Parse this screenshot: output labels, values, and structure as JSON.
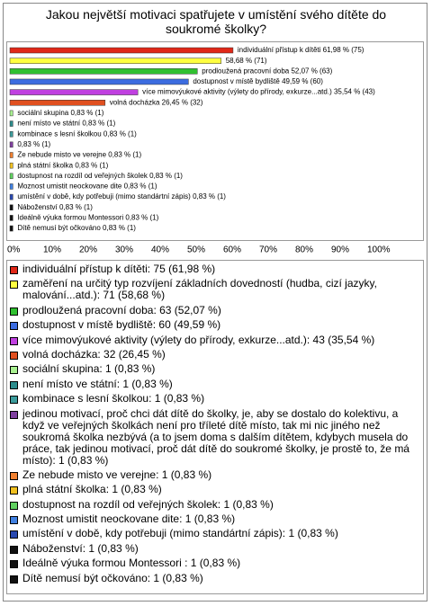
{
  "chart_data": {
    "type": "bar",
    "orientation": "horizontal",
    "title": "Jakou největší motivaci spatřujete v umístění svého dítěte do soukromé školky?",
    "categories": [
      "individuální přístup k dítěti: 75 (61,98 %)",
      "zaměření na určitý typ rozvíjení základních dovedností (hudba, cizí jazyky, malování...atd.): 71 (58,68 %)",
      "prodloužená pracovní doba: 63 (52,07 %)",
      "dostupnost v místě bydliště: 60 (49,59 %)",
      "více mimovýukové aktivity (výlety do přírody, exkurze...atd.): 43 (35,54 %)",
      "volná docházka: 32 (26,45 %)",
      "sociální skupina: 1 (0,83 %)",
      "není místo ve státní: 1 (0,83 %)",
      "kombinace s lesní školkou: 1 (0,83 %)",
      "jedinou motivací, proč chci dát dítě do školky, je, aby se dostalo do kolektivu, a když ve veřejných školkách není pro tříleté dítě místo, tak mi nic jiného než soukromá školka nezbývá (a to jsem doma s dalším dítětem, kdybych musela do práce, tak jedinou motivací, proč dát dítě do soukromé školky, je prostě to, že má místo): 1 (0,83 %)",
      "Ze nebude misto ve verejne: 1 (0,83 %)",
      "plná státní školka: 1 (0,83 %)",
      "dostupnost na rozdíl od veřejných školek: 1 (0,83 %)",
      "Moznost umistit neockovane dite: 1 (0,83 %)",
      "umístění v době, kdy potřebuji (mimo standártní zápis): 1 (0,83 %)",
      "Náboženství: 1 (0,83 %)",
      "Ideálně výuka formou Montessori : 1 (0,83 %)",
      "Dítě nemusí být očkováno: 1 (0,83 %)"
    ],
    "values": [
      61.98,
      58.68,
      52.07,
      49.59,
      35.54,
      26.45,
      0.83,
      0.83,
      0.83,
      0.83,
      0.83,
      0.83,
      0.83,
      0.83,
      0.83,
      0.83,
      0.83,
      0.83
    ],
    "value_labels": [
      "individuální přístup k dítěti 61,98 % (75)",
      "58,68 % (71)",
      "prodloužená pracovní doba 52,07 % (63)",
      "dostupnost v místě bydliště 49,59 % (60)",
      "více mimovýukové aktivity (výlety do přírody, exkurze...atd.) 35,54 % (43)",
      "volná docházka 26,45 % (32)",
      "sociální skupina 0,83 % (1)",
      "není místo ve státní 0,83 % (1)",
      "kombinace s lesní školkou 0,83 % (1)",
      "0,83 % (1)",
      "Ze nebude misto ve verejne 0,83 % (1)",
      "plná státní školka 0,83 % (1)",
      "dostupnost na rozdíl od veřejných školek 0,83 % (1)",
      "Moznost umistit neockovane dite 0,83 % (1)",
      "umístění v době, kdy potřebuji (mimo standártní zápis) 0,83 % (1)",
      "Náboženství 0,83 % (1)",
      "Ideálně výuka formou Montessori 0,83 % (1)",
      "Dítě nemusí být očkováno 0,83 % (1)"
    ],
    "colors": [
      "#e02818",
      "#ffff40",
      "#30c030",
      "#3c6ce0",
      "#c040e0",
      "#e05020",
      "#a8f090",
      "#2c8c8c",
      "#3c9c9c",
      "#8040a0",
      "#f08030",
      "#f0c020",
      "#60d060",
      "#4080e0",
      "#2848b0",
      "#111111",
      "#111111",
      "#111111"
    ],
    "xlim": [
      0,
      100
    ],
    "xticks": [
      {
        "value": 0,
        "label": "0%"
      },
      {
        "value": 10,
        "label": "10%"
      },
      {
        "value": 20,
        "label": "20%"
      },
      {
        "value": 30,
        "label": "30%"
      },
      {
        "value": 40,
        "label": "40%"
      },
      {
        "value": 50,
        "label": "50%"
      },
      {
        "value": 60,
        "label": "60%"
      },
      {
        "value": 70,
        "label": "70%"
      },
      {
        "value": 80,
        "label": "80%"
      },
      {
        "value": 90,
        "label": "90%"
      },
      {
        "value": 100,
        "label": "100%"
      }
    ],
    "grid": false
  }
}
